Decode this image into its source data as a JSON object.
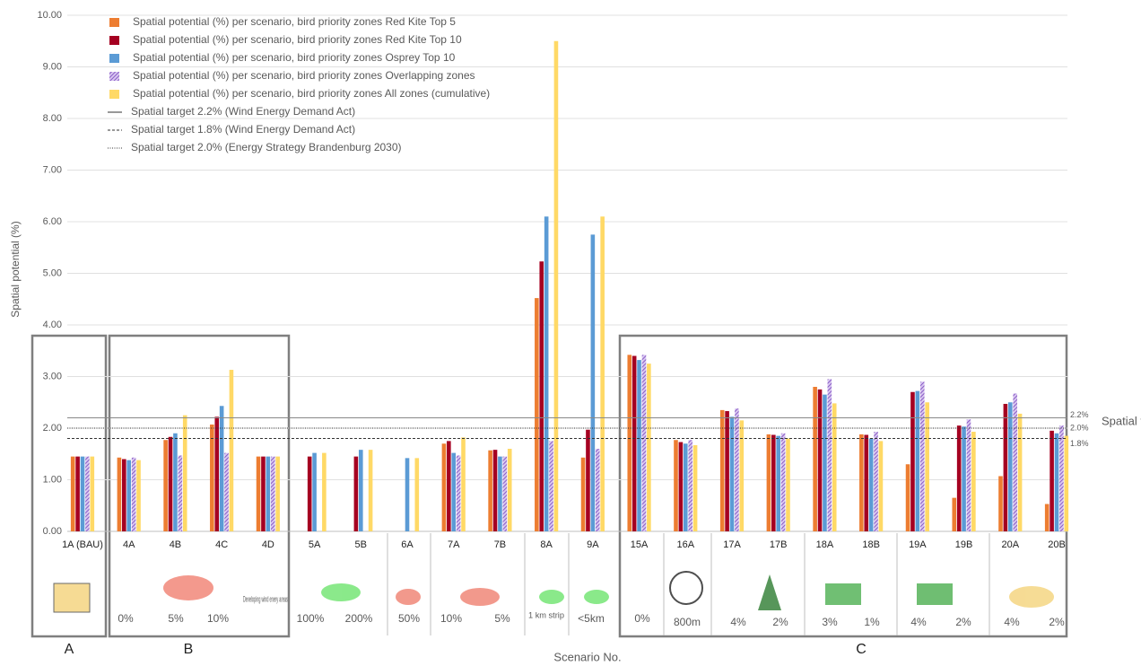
{
  "chart_data": {
    "type": "bar",
    "y_label": "Spatial potential (%)",
    "x_label": "Scenario No.",
    "categories": [
      "1A (BAU)",
      "4A",
      "4B",
      "4C",
      "4D",
      "5A",
      "5B",
      "6A",
      "7A",
      "7B",
      "8A",
      "9A",
      "15A",
      "16A",
      "17A",
      "17B",
      "18A",
      "18B",
      "19A",
      "19B",
      "20A",
      "20B"
    ],
    "series": [
      {
        "name": "Spatial potential (%) per scenario, bird priority zones Red Kite Top 5",
        "color": "#ed7d31",
        "values": [
          1.45,
          1.43,
          1.77,
          2.07,
          1.45,
          null,
          null,
          null,
          1.7,
          1.57,
          4.52,
          1.43,
          3.42,
          1.77,
          2.35,
          1.88,
          2.8,
          1.88,
          1.3,
          0.65,
          1.07,
          0.53
        ]
      },
      {
        "name": "Spatial potential (%) per scenario, bird priority zones Red Kite Top 10",
        "color": "#a50021",
        "values": [
          1.45,
          1.4,
          1.83,
          2.22,
          1.45,
          1.45,
          1.45,
          null,
          1.75,
          1.58,
          5.23,
          1.97,
          3.4,
          1.73,
          2.33,
          1.87,
          2.75,
          1.87,
          2.7,
          2.05,
          2.47,
          1.95
        ]
      },
      {
        "name": "Spatial potential (%) per scenario, bird priority zones Osprey Top 10",
        "color": "#5b9bd5",
        "values": [
          1.45,
          1.38,
          1.9,
          2.43,
          1.45,
          1.52,
          1.58,
          1.42,
          1.52,
          1.45,
          6.1,
          5.75,
          3.32,
          1.7,
          2.22,
          1.85,
          2.65,
          1.8,
          2.72,
          2.03,
          2.5,
          1.9
        ]
      },
      {
        "name": "Spatial potential (%) per scenario, bird priority zones Overlapping zones",
        "color": "#9966cc",
        "hatched": true,
        "values": [
          1.45,
          1.43,
          1.47,
          1.52,
          1.45,
          null,
          null,
          null,
          1.47,
          1.45,
          1.75,
          1.6,
          3.42,
          1.77,
          2.38,
          1.9,
          2.95,
          1.93,
          2.9,
          2.17,
          2.67,
          2.05
        ]
      },
      {
        "name": "Spatial potential (%) per scenario, bird priority zones All zones (cumulative)",
        "color": "#ffd966",
        "values": [
          1.45,
          1.38,
          2.25,
          3.13,
          1.45,
          1.52,
          1.58,
          1.42,
          1.82,
          1.6,
          9.5,
          6.1,
          3.25,
          1.67,
          2.15,
          1.8,
          2.48,
          1.75,
          2.5,
          1.93,
          2.28,
          1.85
        ]
      }
    ],
    "reference_lines": [
      {
        "name": "Spatial target 2.2% (Wind Energy Demand Act)",
        "value": 2.2,
        "style": "solid",
        "label": "2.2%"
      },
      {
        "name": "Spatial target 1.8% (Wind Energy Demand Act)",
        "value": 1.8,
        "style": "dashed",
        "label": "1.8%"
      },
      {
        "name": "Spatial target 2.0% (Energy Strategy Brandenburg 2030)",
        "value": 2.0,
        "style": "dotted",
        "label": "2.0%"
      }
    ],
    "reference_title": "Spatial target",
    "ylim": [
      0,
      10
    ],
    "yticks": [
      {
        "value": 0,
        "label": "0.00"
      },
      {
        "value": 1,
        "label": "1.00"
      },
      {
        "value": 2,
        "label": "2.00"
      },
      {
        "value": 3,
        "label": "3.00"
      },
      {
        "value": 4,
        "label": "4.00"
      },
      {
        "value": 5,
        "label": "5.00"
      },
      {
        "value": 6,
        "label": "6.00"
      },
      {
        "value": 7,
        "label": "7.00"
      },
      {
        "value": 8,
        "label": "8.00"
      },
      {
        "value": 9,
        "label": "9.00"
      },
      {
        "value": 10,
        "label": "10.00"
      }
    ],
    "grid": true,
    "groups": [
      "A",
      "B",
      "C"
    ],
    "scenario_notes": [
      "0%",
      "5%",
      "10%",
      "Developing wind enery areas",
      "100%",
      "200%",
      "50%",
      "10%",
      "5%",
      "1 km strip",
      "<5km",
      "0%",
      "800m",
      "4%",
      "2%",
      "3%",
      "1%",
      "4%",
      "2%",
      "4%",
      "2%"
    ]
  }
}
